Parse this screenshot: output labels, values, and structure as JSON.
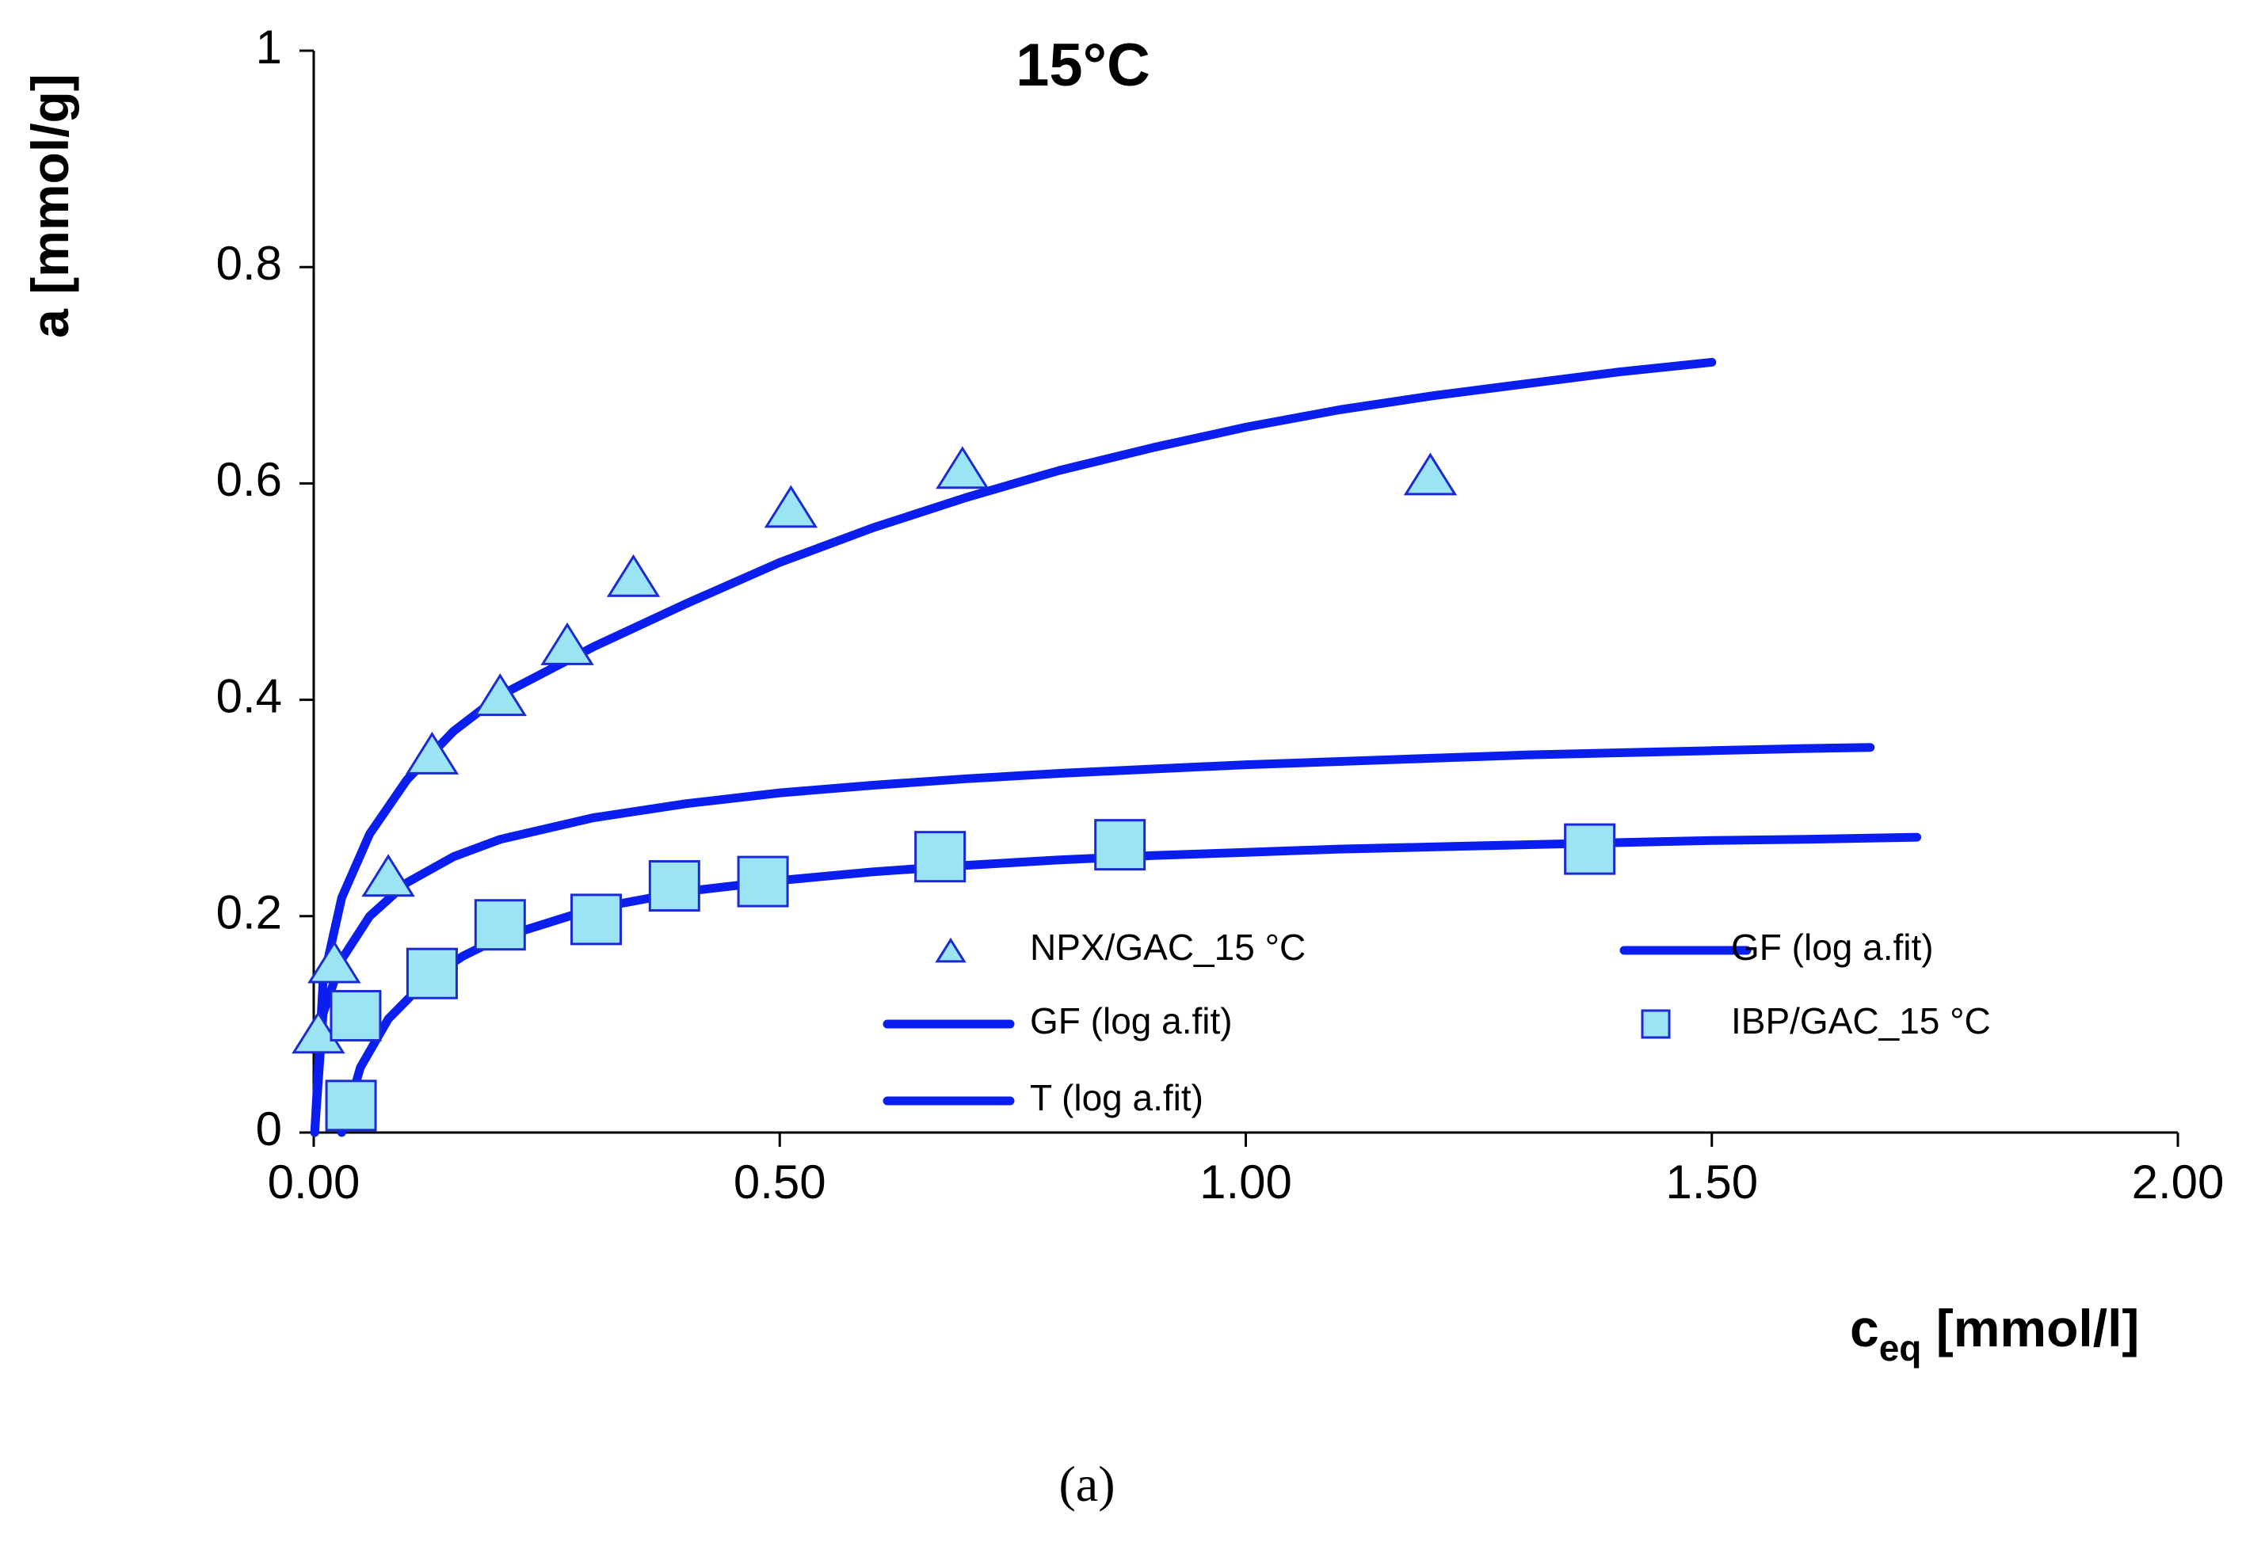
{
  "chart_data": {
    "type": "scatter",
    "title": "15°C",
    "xlabel_main": "c",
    "xlabel_sub": "eq",
    "xlabel_unit": " [mmol/l]",
    "ylabel": "a [mmol/g]",
    "xlim": [
      0,
      2
    ],
    "ylim": [
      0,
      1
    ],
    "xticks": [
      0,
      0.5,
      1,
      1.5,
      2
    ],
    "xtick_labels": [
      "0.00",
      "0.50",
      "1.00",
      "1.50",
      "2.00"
    ],
    "yticks": [
      0,
      0.2,
      0.4,
      0.6,
      0.8,
      1
    ],
    "ytick_labels": [
      "0",
      "0.2",
      "0.4",
      "0.6",
      "0.8",
      "1"
    ],
    "series": [
      {
        "name": "NPX/GAC_15 °C",
        "kind": "points",
        "marker": "triangle",
        "x": [
          0.005,
          0.022,
          0.08,
          0.127,
          0.2,
          0.272,
          0.343,
          0.512,
          0.696,
          1.198
        ],
        "y": [
          0.09,
          0.155,
          0.235,
          0.348,
          0.402,
          0.449,
          0.512,
          0.576,
          0.612,
          0.606
        ]
      },
      {
        "name": "GF (log a.fit)",
        "kind": "line",
        "x": [
          0.001,
          0.01,
          0.03,
          0.06,
          0.1,
          0.15,
          0.2,
          0.3,
          0.4,
          0.5,
          0.6,
          0.7,
          0.8,
          0.9,
          1.0,
          1.1,
          1.2,
          1.3,
          1.4,
          1.5
        ],
        "y": [
          0.0,
          0.14,
          0.217,
          0.276,
          0.326,
          0.371,
          0.404,
          0.449,
          0.489,
          0.527,
          0.559,
          0.587,
          0.612,
          0.633,
          0.652,
          0.668,
          0.681,
          0.692,
          0.703,
          0.712
        ]
      },
      {
        "name": "GF (log a.fit)",
        "kind": "line",
        "x": [
          0.001,
          0.01,
          0.03,
          0.06,
          0.1,
          0.15,
          0.2,
          0.3,
          0.4,
          0.5,
          0.6,
          0.7,
          0.8,
          0.9,
          1.0,
          1.1,
          1.2,
          1.3,
          1.4,
          1.5,
          1.6,
          1.67
        ],
        "y": [
          0.0,
          0.11,
          0.16,
          0.2,
          0.231,
          0.255,
          0.271,
          0.291,
          0.304,
          0.314,
          0.321,
          0.327,
          0.332,
          0.336,
          0.34,
          0.343,
          0.346,
          0.349,
          0.351,
          0.353,
          0.355,
          0.356
        ]
      },
      {
        "name": "IBP/GAC_15 °C",
        "kind": "points",
        "marker": "square",
        "x": [
          0.04,
          0.045,
          0.127,
          0.2,
          0.303,
          0.387,
          0.482,
          0.672,
          0.865,
          1.369
        ],
        "y": [
          0.025,
          0.108,
          0.147,
          0.192,
          0.197,
          0.228,
          0.232,
          0.255,
          0.266,
          0.262
        ]
      },
      {
        "name": "T (log a.fit)",
        "kind": "line",
        "x": [
          0.03,
          0.05,
          0.08,
          0.12,
          0.16,
          0.2,
          0.3,
          0.4,
          0.5,
          0.6,
          0.7,
          0.8,
          0.9,
          1.0,
          1.1,
          1.2,
          1.3,
          1.4,
          1.5,
          1.6,
          1.72
        ],
        "y": [
          0.0,
          0.06,
          0.105,
          0.14,
          0.163,
          0.18,
          0.207,
          0.223,
          0.233,
          0.241,
          0.247,
          0.252,
          0.256,
          0.259,
          0.262,
          0.264,
          0.266,
          0.268,
          0.27,
          0.271,
          0.273
        ]
      }
    ],
    "legend": [
      {
        "label": "NPX/GAC_15 °C",
        "symbol": "triangle"
      },
      {
        "label": "GF (log a.fit)",
        "symbol": "line"
      },
      {
        "label": "GF (log a.fit)",
        "symbol": "line"
      },
      {
        "label": "IBP/GAC_15 °C",
        "symbol": "square"
      },
      {
        "label": "T (log a.fit)",
        "symbol": "line"
      }
    ],
    "colors": {
      "line": "#0a1ef0",
      "marker_fill": "#9ae4f4",
      "marker_edge": "#1a2bd6",
      "axis": "#000000"
    }
  },
  "caption": "(a)"
}
